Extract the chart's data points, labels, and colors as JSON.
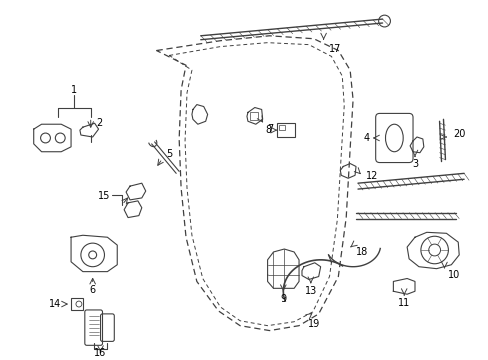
{
  "bg_color": "#ffffff",
  "line_color": "#404040",
  "label_color": "#000000",
  "figsize": [
    4.89,
    3.6
  ],
  "dpi": 100
}
